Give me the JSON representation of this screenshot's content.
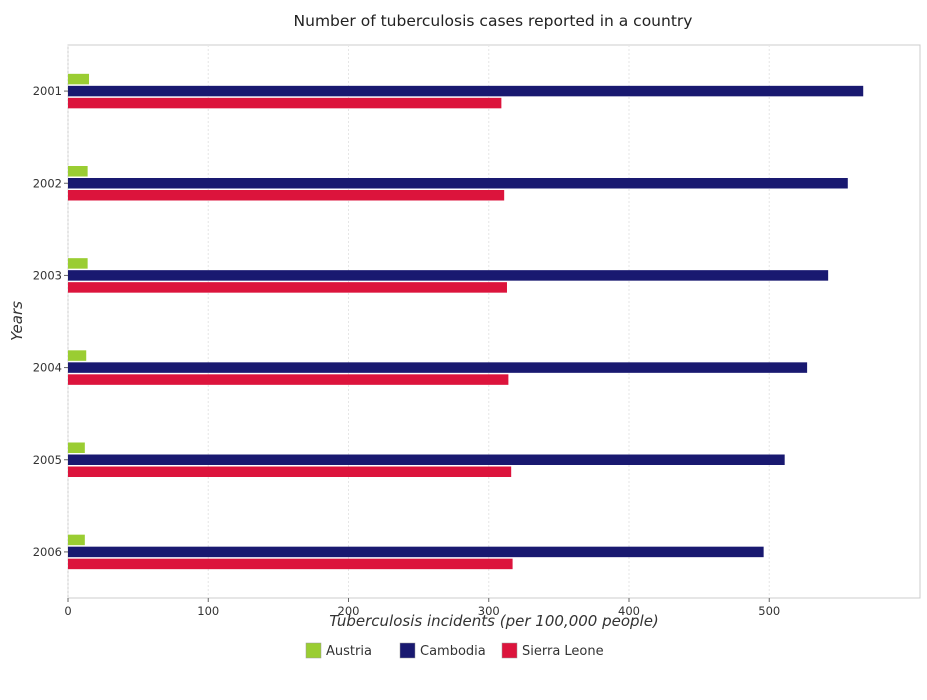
{
  "chart_data": {
    "type": "bar",
    "orientation": "horizontal",
    "title": "Number of tuberculosis cases reported in a country",
    "xlabel": "Tuberculosis incidents (per 100,000 people)",
    "ylabel": "Years",
    "categories": [
      "2001",
      "2002",
      "2003",
      "2004",
      "2005",
      "2006"
    ],
    "x_ticks": [
      "0",
      "100",
      "200",
      "300",
      "400",
      "500"
    ],
    "xlim": [
      0,
      590
    ],
    "grid": true,
    "legend_position": "bottom",
    "series": [
      {
        "name": "Austria",
        "color": "#9acd32",
        "values": [
          15,
          14,
          14,
          13,
          12,
          12
        ]
      },
      {
        "name": "Cambodia",
        "color": "#191970",
        "values": [
          567,
          556,
          542,
          527,
          511,
          496
        ]
      },
      {
        "name": "Sierra Leone",
        "color": "#dc143c",
        "values": [
          309,
          311,
          313,
          314,
          316,
          317
        ]
      }
    ]
  }
}
